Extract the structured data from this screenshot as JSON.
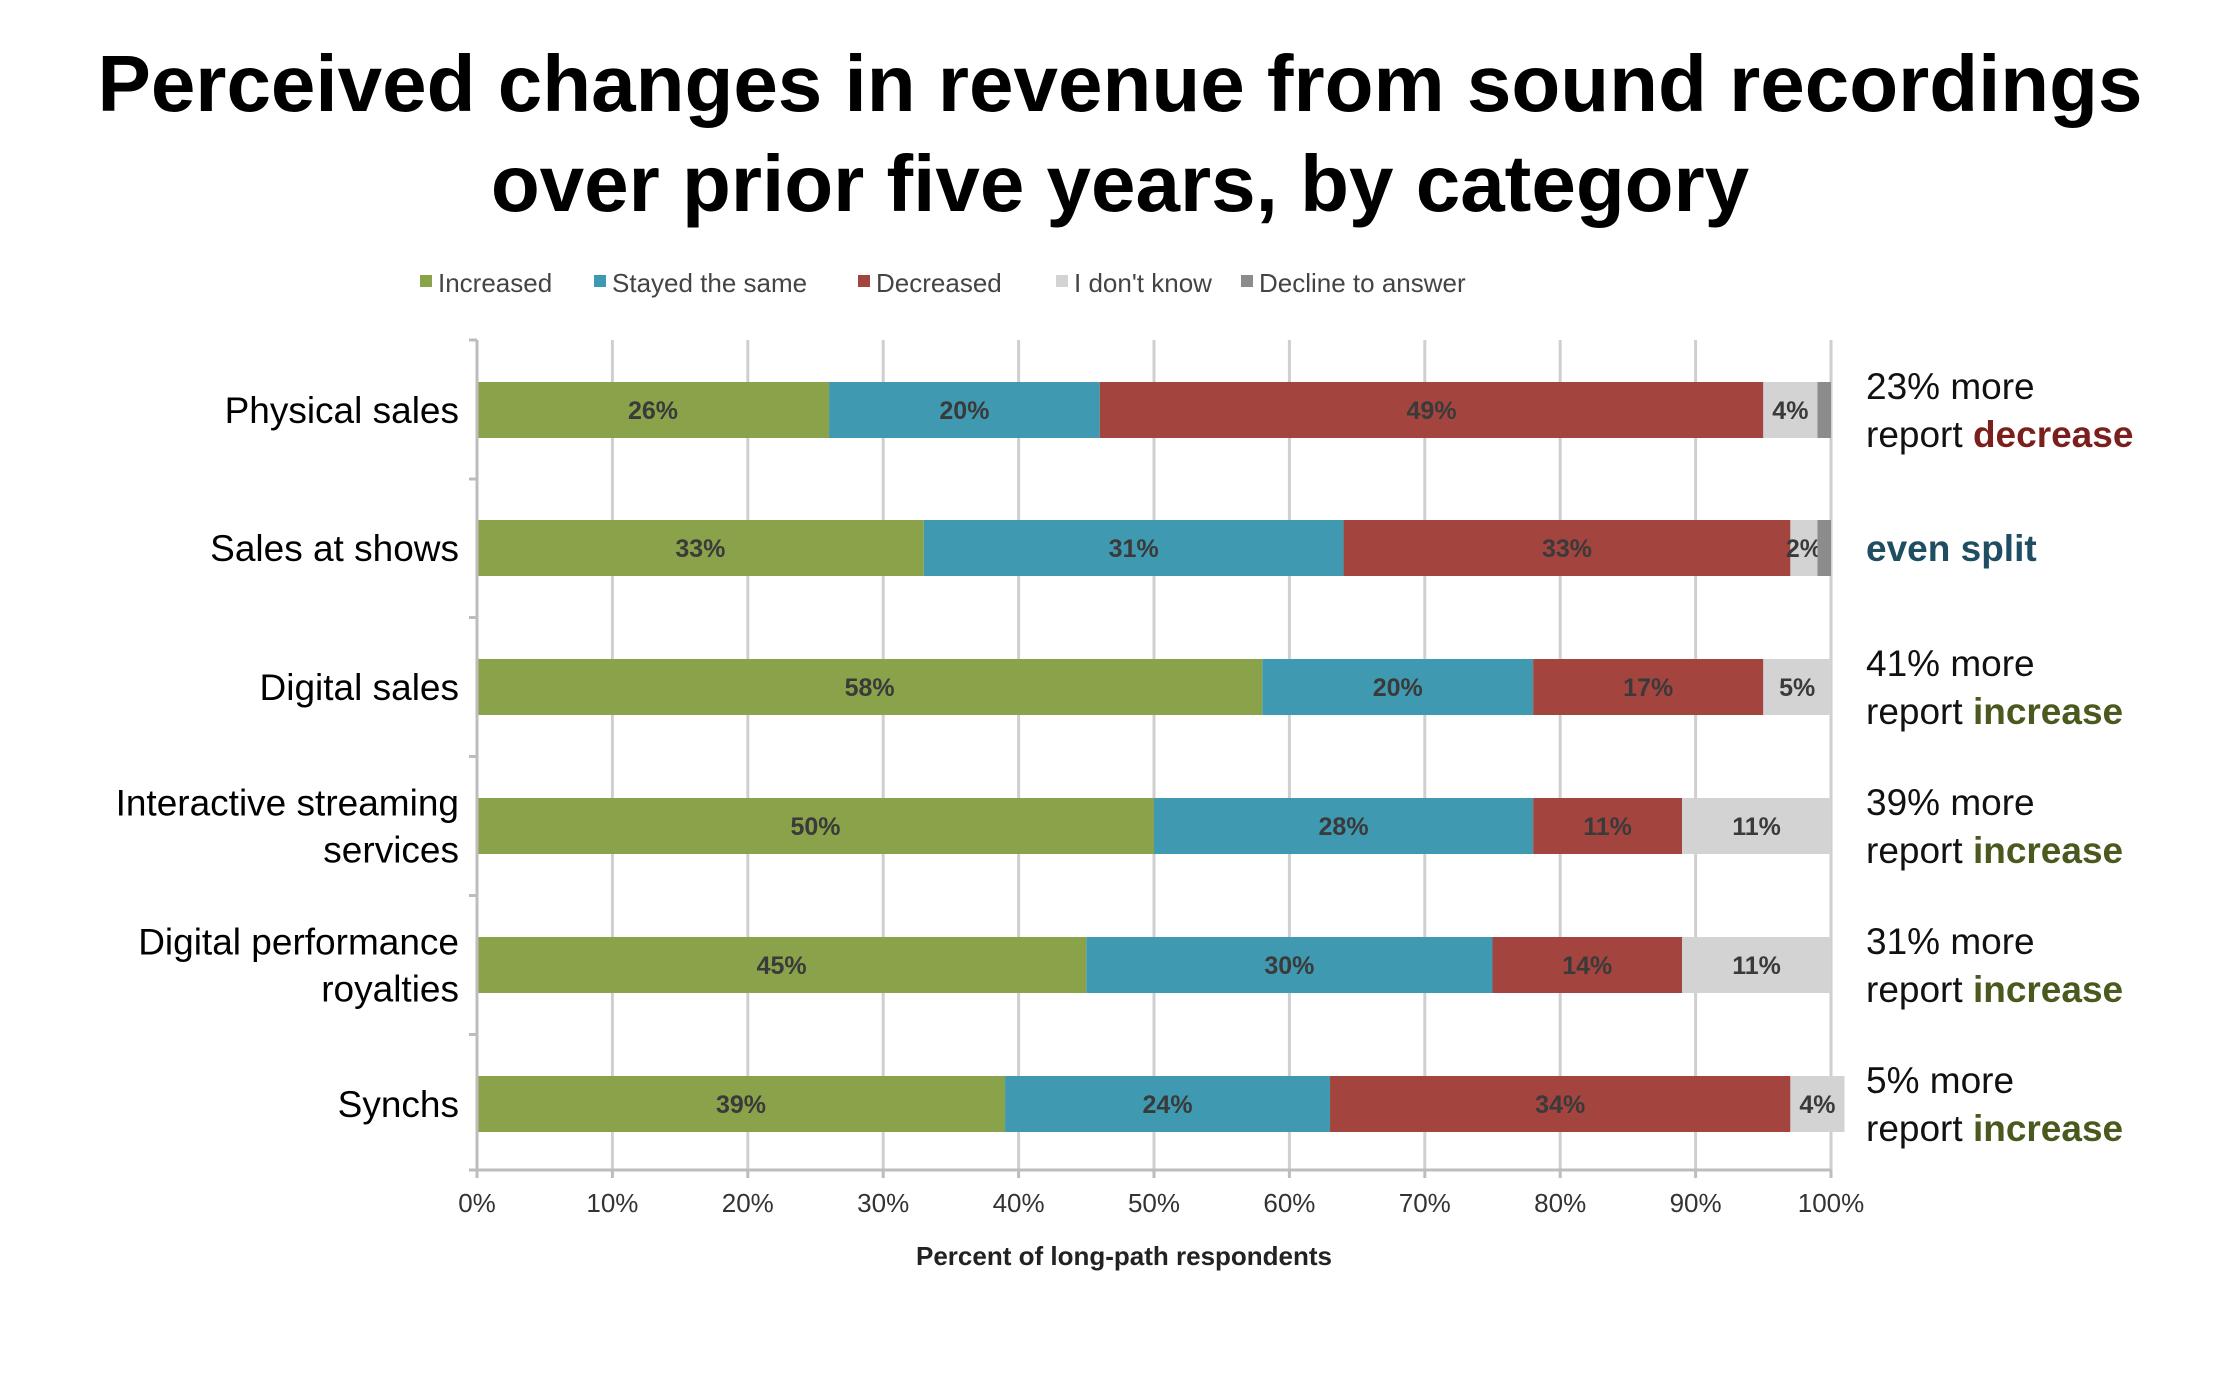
{
  "title": {
    "line1": "Perceived changes in revenue from sound recordings",
    "line2": "over prior five years, by category"
  },
  "chart_data": {
    "type": "bar",
    "orientation": "horizontal",
    "stacked": true,
    "categories": [
      "Physical sales",
      "Sales at shows",
      "Digital sales",
      "Interactive streaming services",
      "Digital performance royalties",
      "Synchs"
    ],
    "category_label_lines": [
      [
        "Physical sales"
      ],
      [
        "Sales at shows"
      ],
      [
        "Digital sales"
      ],
      [
        "Interactive streaming",
        "services"
      ],
      [
        "Digital performance",
        "royalties"
      ],
      [
        "Synchs"
      ]
    ],
    "series": [
      {
        "name": "Increased",
        "color": "#8aa34b",
        "values": [
          26,
          33,
          58,
          50,
          45,
          39
        ],
        "labels": [
          "26%",
          "33%",
          "58%",
          "50%",
          "45%",
          "39%"
        ]
      },
      {
        "name": "Stayed the same",
        "color": "#3f9ab1",
        "values": [
          20,
          31,
          20,
          28,
          30,
          24
        ],
        "labels": [
          "20%",
          "31%",
          "20%",
          "28%",
          "30%",
          "24%"
        ]
      },
      {
        "name": "Decreased",
        "color": "#a4443f",
        "values": [
          49,
          33,
          17,
          11,
          14,
          34
        ],
        "labels": [
          "49%",
          "33%",
          "17%",
          "11%",
          "14%",
          "34%"
        ]
      },
      {
        "name": "I don't know",
        "color": "#d3d3d3",
        "values": [
          4,
          2,
          5,
          11,
          11,
          4
        ],
        "labels": [
          "4%",
          "2%",
          "5%",
          "11%",
          "11%",
          "4%"
        ]
      },
      {
        "name": "Decline to answer",
        "color": "#8c8c8c",
        "values": [
          1,
          1,
          0,
          0,
          0,
          0
        ],
        "labels": [
          "",
          "",
          "",
          "",
          "",
          ""
        ]
      }
    ],
    "xlabel": "Percent of long-path respondents",
    "ylabel": "",
    "xlim": [
      0,
      100
    ],
    "x_ticks": [
      "0%",
      "10%",
      "20%",
      "30%",
      "40%",
      "50%",
      "60%",
      "70%",
      "80%",
      "90%",
      "100%"
    ],
    "grid": true,
    "legend_position": "top",
    "annotations": [
      {
        "prefix": "23% more",
        "line2_prefix": "report ",
        "emphasis": "decrease",
        "emphasis_color": "#7b1f1c"
      },
      {
        "prefix": "",
        "line2_prefix": "",
        "emphasis": "even split",
        "emphasis_color": "#1f4e63"
      },
      {
        "prefix": "41% more",
        "line2_prefix": "report ",
        "emphasis": "increase",
        "emphasis_color": "#4a5a1e"
      },
      {
        "prefix": "39% more",
        "line2_prefix": "report ",
        "emphasis": "increase",
        "emphasis_color": "#4a5a1e"
      },
      {
        "prefix": "31% more",
        "line2_prefix": "report ",
        "emphasis": "increase",
        "emphasis_color": "#4a5a1e"
      },
      {
        "prefix": "5% more",
        "line2_prefix": "report ",
        "emphasis": "increase",
        "emphasis_color": "#4a5a1e"
      }
    ]
  }
}
